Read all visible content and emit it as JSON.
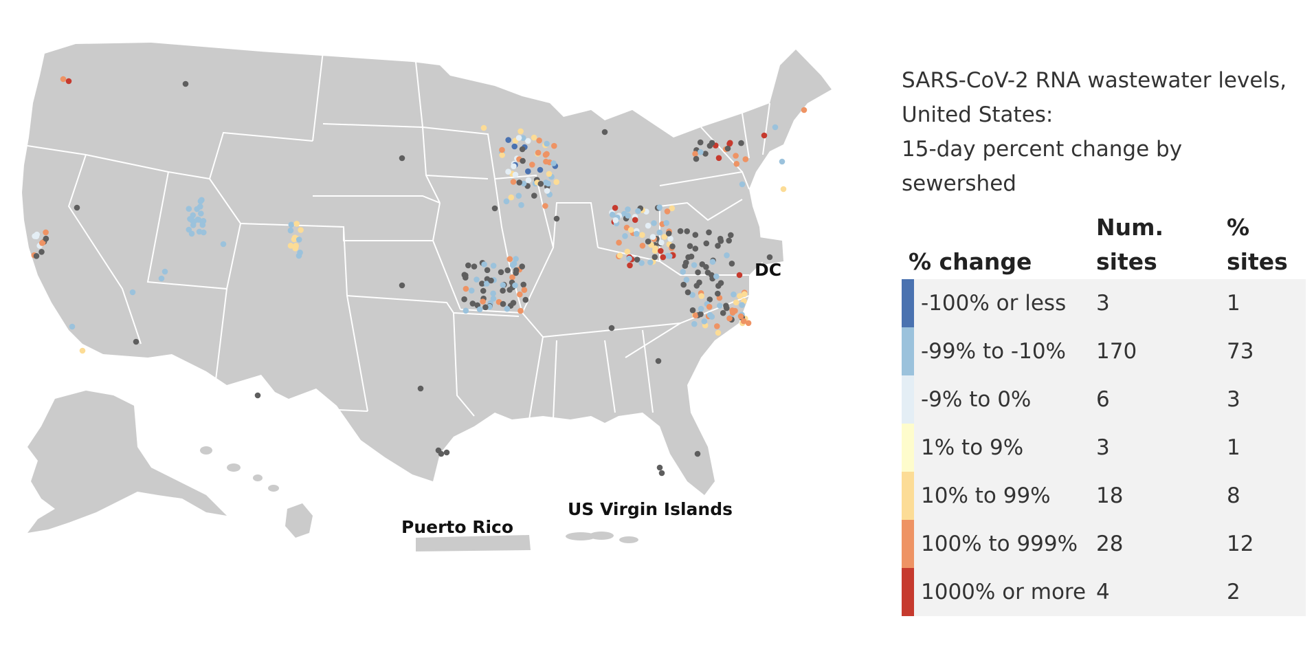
{
  "legend": {
    "title_lines": [
      "SARS-CoV-2 RNA wastewater levels,",
      "United States:",
      "15-day percent change by",
      "sewershed"
    ],
    "headers": {
      "change": "% change",
      "num_sites_1": "Num.",
      "num_sites_2": "sites",
      "pct_sites_1": "%",
      "pct_sites_2": "sites"
    },
    "rows": [
      {
        "label": "-100% or less",
        "num": "3",
        "pct": "1",
        "color": "#4a72b0"
      },
      {
        "label": "-99% to -10%",
        "num": "170",
        "pct": "73",
        "color": "#9bc2dc"
      },
      {
        "label": "-9% to 0%",
        "num": "6",
        "pct": "3",
        "color": "#e4eef5"
      },
      {
        "label": "1% to 9%",
        "num": "3",
        "pct": "1",
        "color": "#fefccc"
      },
      {
        "label": "10% to 99%",
        "num": "18",
        "pct": "8",
        "color": "#fcdc96"
      },
      {
        "label": "100% to 999%",
        "num": "28",
        "pct": "12",
        "color": "#ee9364"
      },
      {
        "label": "1000% or more",
        "num": "4",
        "pct": "2",
        "color": "#c63a2e"
      }
    ]
  },
  "map": {
    "labels": {
      "dc": "DC",
      "puerto_rico": "Puerto Rico",
      "usvi": "US Virgin Islands"
    },
    "colors": {
      "land": "#cbcbcb",
      "border": "#ffffff",
      "no_data": "#5e5e5e"
    }
  }
}
